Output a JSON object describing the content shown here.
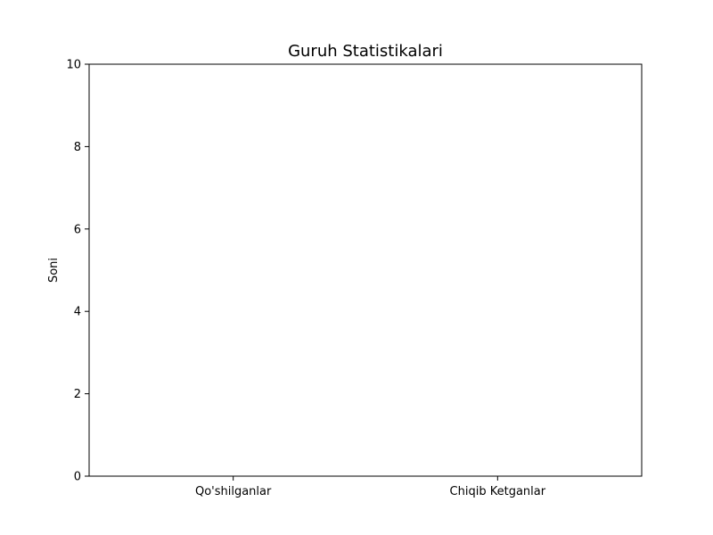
{
  "chart_data": {
    "type": "bar",
    "title": "Guruh Statistikalari",
    "xlabel": "",
    "ylabel": "Soni",
    "categories": [
      "Qo'shilganlar",
      "Chiqib Ketganlar"
    ],
    "values": [
      0,
      0
    ],
    "ylim": [
      0,
      10
    ],
    "yticks": [
      0,
      2,
      4,
      6,
      8,
      10
    ],
    "yticks_labels": [
      "0",
      "2",
      "4",
      "6",
      "8",
      "10"
    ],
    "grid": false,
    "legend": "none",
    "colors": {
      "axis": "#000000",
      "bar": "#1f77b4",
      "background": "#ffffff"
    }
  }
}
